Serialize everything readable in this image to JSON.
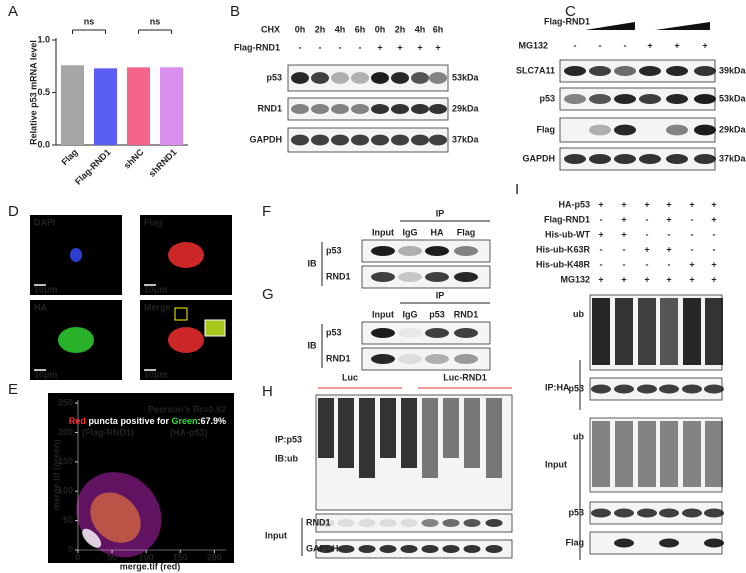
{
  "panel_letters": [
    "A",
    "B",
    "C",
    "D",
    "E",
    "F",
    "G",
    "H",
    "I"
  ],
  "chart_data": {
    "type": "bar",
    "y_label": "Relative p53 mRNA level",
    "categories": [
      "Flag",
      "Flag-RND1",
      "shNC",
      "shRND1"
    ],
    "values": [
      0.76,
      0.73,
      0.74,
      0.74
    ],
    "colors": [
      "#a6a6a6",
      "#5a5ef5",
      "#f4648c",
      "#d98ef0"
    ],
    "ylim": [
      0,
      1.0
    ],
    "yticks": [
      {
        "value": 0,
        "label": "0.0"
      },
      {
        "value": 0.5,
        "label": "0.5"
      },
      {
        "value": 1.0,
        "label": "1.0"
      }
    ],
    "annotations": [
      "ns",
      "ns"
    ]
  },
  "B": {
    "row_labels": [
      "CHX",
      "Flag-RND1"
    ],
    "chx": [
      "0h",
      "2h",
      "4h",
      "6h",
      "0h",
      "2h",
      "4h",
      "6h"
    ],
    "flag": [
      "-",
      "-",
      "-",
      "-",
      "+",
      "+",
      "+",
      "+"
    ],
    "blots": [
      "p53",
      "RND1",
      "GAPDH"
    ],
    "sizes": [
      "53kDa",
      "29kDa",
      "37kDa"
    ]
  },
  "C": {
    "treatments": [
      "Flag-RND1",
      "MG132"
    ],
    "mg132": [
      "-",
      "-",
      "-",
      "+",
      "+",
      "+"
    ],
    "blots": [
      "SLC7A11",
      "p53",
      "Flag",
      "GAPDH"
    ],
    "sizes": [
      "39kDa",
      "53kDa",
      "29kDa",
      "37kDa"
    ]
  },
  "D": {
    "labels": [
      "DAPI",
      "Flag",
      "HA",
      "Merge"
    ],
    "scale": "10μm"
  },
  "E": {
    "stats": "Pearson's Rr=0.92",
    "puncta": [
      "Red",
      " puncta positive for ",
      "Green",
      ":67.9%"
    ],
    "red_label": "(Flag-RND1)",
    "green_label": "(HA-p53)",
    "x_label": "merge.tif (red)",
    "y_label": "merge.tif (green)",
    "xlim": [
      0,
      220
    ],
    "ylim": [
      0,
      262
    ],
    "xticks": [
      0,
      50,
      100,
      150,
      200
    ],
    "yticks": [
      0,
      50,
      100,
      150,
      200,
      250
    ]
  },
  "F": {
    "ip": "IP",
    "ib": "IB",
    "lanes": [
      "Input",
      "IgG",
      "HA",
      "Flag"
    ],
    "blots": [
      "p53",
      "RND1"
    ]
  },
  "G": {
    "ip": "IP",
    "ib": "IB",
    "lanes": [
      "Input",
      "IgG",
      "p53",
      "RND1"
    ],
    "blots": [
      "p53",
      "RND1"
    ]
  },
  "H": {
    "groups": [
      "Luc",
      "Luc-RND1"
    ],
    "ip": "IP:p53",
    "ib": "IB:ub",
    "input": "Input",
    "blots": [
      "RND1",
      "GAPDH"
    ]
  },
  "I": {
    "rows": [
      {
        "name": "HA-p53",
        "marks": [
          "+",
          "+",
          "+",
          "+",
          "+",
          "+"
        ]
      },
      {
        "name": "Flag-RND1",
        "marks": [
          "-",
          "+",
          "-",
          "+",
          "-",
          "+"
        ]
      },
      {
        "name": "His-ub-WT",
        "marks": [
          "+",
          "+",
          "-",
          "-",
          "-",
          "-"
        ]
      },
      {
        "name": "His-ub-K63R",
        "marks": [
          "-",
          "-",
          "+",
          "+",
          "-",
          "-"
        ]
      },
      {
        "name": "His-ub-K48R",
        "marks": [
          "-",
          "-",
          "-",
          "-",
          "+",
          "+"
        ]
      },
      {
        "name": "MG132",
        "marks": [
          "+",
          "+",
          "+",
          "+",
          "+",
          "+"
        ]
      }
    ],
    "ip": "IP:HA",
    "input": "Input",
    "ip_blots": [
      "ub",
      "p53"
    ],
    "input_blots": [
      "ub",
      "p53",
      "Flag"
    ]
  }
}
